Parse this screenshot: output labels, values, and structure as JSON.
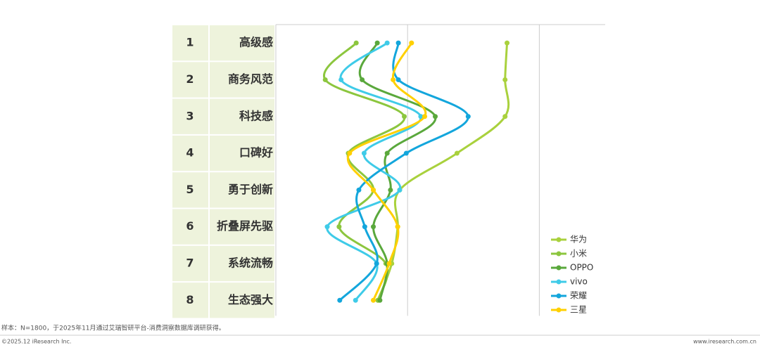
{
  "chart_data": {
    "type": "line",
    "orientation": "vertical",
    "ranks": [
      "1",
      "2",
      "3",
      "4",
      "5",
      "6",
      "7",
      "8"
    ],
    "categories": [
      "高级感",
      "商务风范",
      "科技感",
      "口碑好",
      "勇于创新",
      "折叠屏先驱",
      "系统流畅",
      "生态强大"
    ],
    "xlim": [
      0,
      50
    ],
    "xticks": [
      0,
      20,
      40
    ],
    "grid": true,
    "legend": "lower right",
    "series": [
      {
        "name": "华为",
        "color": "#a9d13d",
        "values": [
          35.1,
          34.8,
          34.8,
          27.5,
          18.8,
          18.5,
          17.6,
          15.5
        ]
      },
      {
        "name": "小米",
        "color": "#8cc63e",
        "values": [
          12.2,
          7.5,
          19.5,
          11.0,
          14.8,
          9.6,
          16.7,
          15.5
        ]
      },
      {
        "name": "OPPO",
        "color": "#5aa83c",
        "values": [
          15.4,
          13.1,
          24.2,
          16.9,
          17.4,
          14.8,
          16.9,
          15.8
        ]
      },
      {
        "name": "vivo",
        "color": "#3fcbe8",
        "values": [
          16.9,
          9.9,
          22.0,
          13.4,
          18.8,
          7.8,
          15.3,
          12.1
        ]
      },
      {
        "name": "荣耀",
        "color": "#13a6dc",
        "values": [
          18.6,
          18.6,
          29.2,
          19.8,
          12.6,
          13.5,
          15.3,
          9.7
        ]
      },
      {
        "name": "三星",
        "color": "#ffd000",
        "values": [
          20.6,
          17.8,
          22.6,
          11.2,
          14.8,
          18.5,
          17.2,
          14.8
        ]
      }
    ]
  },
  "footer": {
    "note": "样本：N=1800，于2025年11月通过艾瑞智研平台-消费洞察数据库调研获得。",
    "copyright": "©2025.12 iResearch Inc.",
    "website": "www.iresearch.com.cn"
  }
}
